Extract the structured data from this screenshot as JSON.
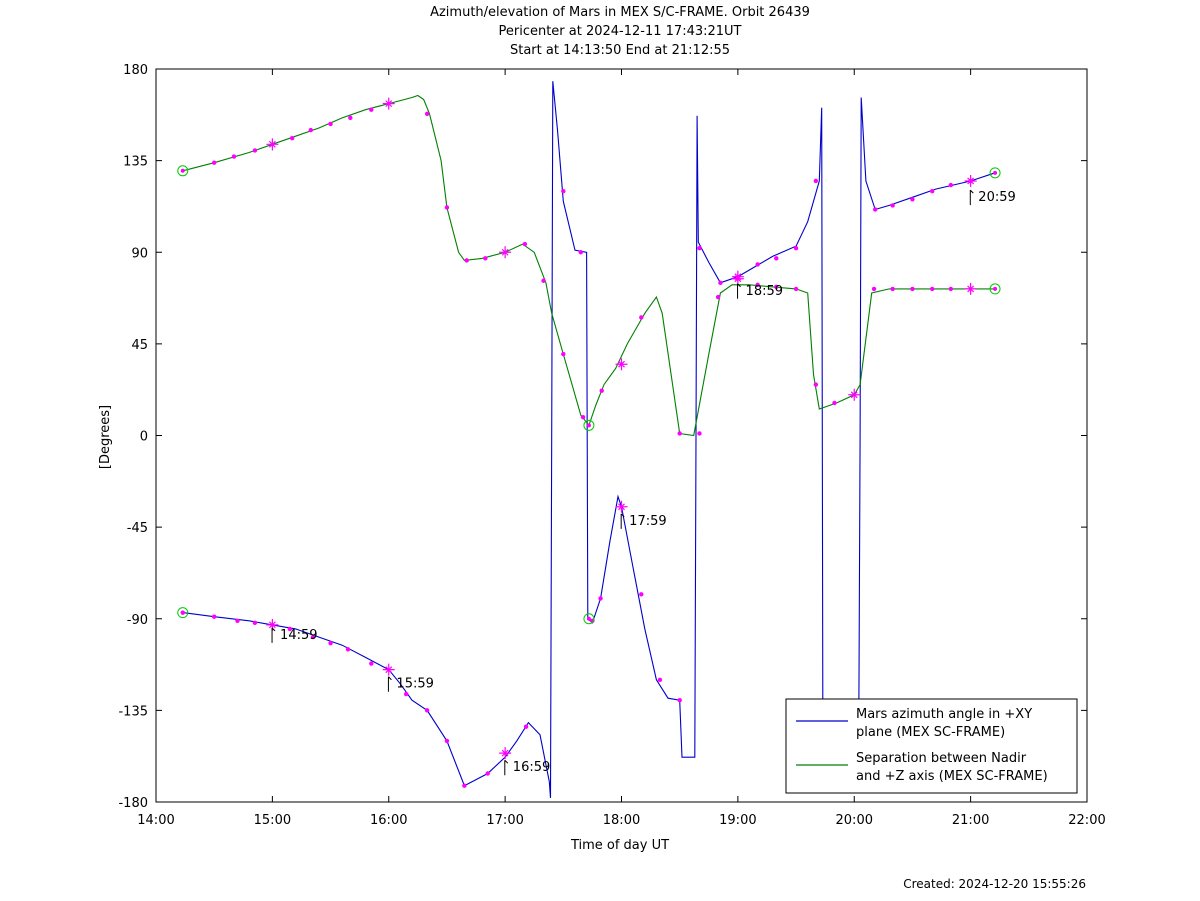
{
  "chart_data": {
    "type": "line",
    "title": "Azimuth/elevation of Mars in MEX S/C-FRAME.  Orbit 26439",
    "subtitle_1": "Pericenter at 2024-12-11 17:43:21UT",
    "subtitle_2": "Start at 14:13:50 End at 21:12:55",
    "xlabel": "Time of day UT",
    "ylabel": "[Degrees]",
    "xlim_hours": [
      14,
      22
    ],
    "ylim": [
      -180,
      180
    ],
    "x_ticks": [
      "14:00",
      "15:00",
      "16:00",
      "17:00",
      "18:00",
      "19:00",
      "20:00",
      "21:00",
      "22:00"
    ],
    "y_ticks": [
      "180",
      "135",
      "90",
      "45",
      "0",
      "-45",
      "-90",
      "-135",
      "-180"
    ],
    "y_tick_values": [
      180,
      135,
      90,
      45,
      0,
      -45,
      -90,
      -135,
      -180
    ],
    "legend_position": "bottom-right",
    "series": [
      {
        "name": "Mars azimuth angle in +XY plane (MEX SC-FRAME)",
        "legend_line1": "Mars azimuth angle in +XY",
        "legend_line2": "plane (MEX SC-FRAME)",
        "color": "#0000cc",
        "points": [
          [
            14.23,
            -87
          ],
          [
            14.5,
            -89
          ],
          [
            14.8,
            -91
          ],
          [
            15.0,
            -93
          ],
          [
            15.2,
            -95
          ],
          [
            15.4,
            -99
          ],
          [
            15.6,
            -103
          ],
          [
            15.8,
            -109
          ],
          [
            16.0,
            -115
          ],
          [
            16.1,
            -122
          ],
          [
            16.2,
            -130
          ],
          [
            16.33,
            -135
          ],
          [
            16.5,
            -150
          ],
          [
            16.65,
            -172
          ],
          [
            16.85,
            -166
          ],
          [
            17.0,
            -158
          ],
          [
            17.1,
            -150
          ],
          [
            17.2,
            -141
          ],
          [
            17.3,
            -147
          ],
          [
            17.38,
            -170
          ],
          [
            17.39,
            -178
          ],
          [
            17.4,
            0
          ],
          [
            17.41,
            174
          ],
          [
            17.45,
            150
          ],
          [
            17.5,
            115
          ],
          [
            17.6,
            91
          ],
          [
            17.7,
            90
          ],
          [
            17.71,
            -90
          ],
          [
            17.75,
            -92
          ],
          [
            17.82,
            -80
          ],
          [
            17.9,
            -52
          ],
          [
            17.97,
            -30
          ],
          [
            18.0,
            -35
          ],
          [
            18.1,
            -65
          ],
          [
            18.2,
            -95
          ],
          [
            18.3,
            -120
          ],
          [
            18.4,
            -129
          ],
          [
            18.5,
            -130
          ],
          [
            18.52,
            -158
          ],
          [
            18.63,
            -158
          ],
          [
            18.64,
            0
          ],
          [
            18.65,
            157
          ],
          [
            18.66,
            95
          ],
          [
            18.75,
            85
          ],
          [
            18.85,
            75
          ],
          [
            19.0,
            78
          ],
          [
            19.15,
            83
          ],
          [
            19.3,
            88
          ],
          [
            19.5,
            93
          ],
          [
            19.6,
            105
          ],
          [
            19.7,
            125
          ],
          [
            19.72,
            161
          ],
          [
            19.73,
            -130
          ],
          [
            20.04,
            -130
          ],
          [
            20.05,
            0
          ],
          [
            20.06,
            166
          ],
          [
            20.1,
            125
          ],
          [
            20.18,
            111
          ],
          [
            20.3,
            113
          ],
          [
            20.5,
            117
          ],
          [
            20.7,
            121
          ],
          [
            21.0,
            125
          ],
          [
            21.21,
            129
          ]
        ]
      },
      {
        "name": "Separation between Nadir and +Z axis (MEX SC-FRAME)",
        "legend_line1": "Separation between Nadir",
        "legend_line2": "and +Z axis (MEX SC-FRAME)",
        "color": "#008000",
        "points": [
          [
            14.23,
            130
          ],
          [
            14.5,
            134
          ],
          [
            14.8,
            139
          ],
          [
            15.0,
            143
          ],
          [
            15.2,
            147
          ],
          [
            15.4,
            151
          ],
          [
            15.6,
            156
          ],
          [
            15.8,
            160
          ],
          [
            16.0,
            163
          ],
          [
            16.2,
            166
          ],
          [
            16.25,
            167
          ],
          [
            16.3,
            165
          ],
          [
            16.35,
            158
          ],
          [
            16.45,
            135
          ],
          [
            16.5,
            112
          ],
          [
            16.6,
            90
          ],
          [
            16.65,
            86
          ],
          [
            16.8,
            87
          ],
          [
            17.0,
            90
          ],
          [
            17.15,
            94
          ],
          [
            17.25,
            90
          ],
          [
            17.35,
            75
          ],
          [
            17.4,
            60
          ],
          [
            17.5,
            40
          ],
          [
            17.65,
            10
          ],
          [
            17.72,
            5
          ],
          [
            17.78,
            15
          ],
          [
            17.85,
            25
          ],
          [
            17.95,
            33
          ],
          [
            18.05,
            45
          ],
          [
            18.2,
            60
          ],
          [
            18.3,
            68
          ],
          [
            18.35,
            60
          ],
          [
            18.5,
            1
          ],
          [
            18.62,
            0
          ],
          [
            18.75,
            40
          ],
          [
            18.85,
            70
          ],
          [
            18.95,
            74
          ],
          [
            19.1,
            74
          ],
          [
            19.3,
            73
          ],
          [
            19.5,
            72
          ],
          [
            19.6,
            70
          ],
          [
            19.65,
            30
          ],
          [
            19.7,
            13
          ],
          [
            19.85,
            16
          ],
          [
            20.0,
            20
          ],
          [
            20.05,
            25
          ],
          [
            20.15,
            70
          ],
          [
            20.3,
            72
          ],
          [
            20.6,
            72
          ],
          [
            21.0,
            72
          ],
          [
            21.21,
            72
          ]
        ]
      }
    ],
    "marker_color": "#ff00ff",
    "circle_color": "#00cc00",
    "dot_markers": [
      [
        14.23,
        -87
      ],
      [
        14.5,
        -89
      ],
      [
        14.7,
        -91
      ],
      [
        14.85,
        -92
      ],
      [
        15.15,
        -95
      ],
      [
        15.35,
        -99
      ],
      [
        15.5,
        -102
      ],
      [
        15.65,
        -105
      ],
      [
        15.85,
        -112
      ],
      [
        16.15,
        -127
      ],
      [
        16.33,
        -135
      ],
      [
        16.5,
        -150
      ],
      [
        16.65,
        -172
      ],
      [
        16.85,
        -166
      ],
      [
        17.18,
        -143
      ],
      [
        17.5,
        120
      ],
      [
        17.65,
        90
      ],
      [
        17.75,
        -91
      ],
      [
        17.82,
        -80
      ],
      [
        18.17,
        -78
      ],
      [
        18.33,
        -120
      ],
      [
        18.5,
        -130
      ],
      [
        18.67,
        92
      ],
      [
        18.85,
        75
      ],
      [
        19.17,
        84
      ],
      [
        19.33,
        87
      ],
      [
        19.5,
        92
      ],
      [
        19.67,
        125
      ],
      [
        20.18,
        111
      ],
      [
        20.33,
        113
      ],
      [
        20.5,
        116
      ],
      [
        20.67,
        120
      ],
      [
        20.83,
        123
      ],
      [
        21.0,
        125
      ],
      [
        14.5,
        134
      ],
      [
        14.67,
        137
      ],
      [
        14.85,
        140
      ],
      [
        15.17,
        146
      ],
      [
        15.33,
        150
      ],
      [
        15.5,
        153
      ],
      [
        15.67,
        156
      ],
      [
        15.85,
        160
      ],
      [
        16.33,
        158
      ],
      [
        16.5,
        112
      ],
      [
        16.67,
        86
      ],
      [
        16.83,
        87
      ],
      [
        17.17,
        94
      ],
      [
        17.33,
        76
      ],
      [
        17.5,
        40
      ],
      [
        17.67,
        9
      ],
      [
        17.83,
        22
      ],
      [
        18.17,
        58
      ],
      [
        18.5,
        1
      ],
      [
        18.67,
        1
      ],
      [
        18.83,
        68
      ],
      [
        19.17,
        74
      ],
      [
        19.33,
        73
      ],
      [
        19.5,
        72
      ],
      [
        19.67,
        25
      ],
      [
        19.83,
        16
      ],
      [
        20.17,
        72
      ],
      [
        20.33,
        72
      ],
      [
        20.5,
        72
      ],
      [
        20.67,
        72
      ],
      [
        20.83,
        72
      ]
    ],
    "cross_markers": [
      [
        15.0,
        143
      ],
      [
        16.0,
        163
      ],
      [
        17.0,
        90
      ],
      [
        18.0,
        35
      ],
      [
        19.0,
        77
      ],
      [
        20.0,
        20
      ],
      [
        21.0,
        72
      ],
      [
        15.0,
        -93
      ],
      [
        16.0,
        -115
      ],
      [
        17.0,
        -156
      ],
      [
        18.0,
        -35
      ],
      [
        19.0,
        78
      ],
      [
        21.0,
        125
      ]
    ],
    "circle_markers": [
      [
        14.23,
        130
      ],
      [
        14.23,
        -87
      ],
      [
        17.72,
        5
      ],
      [
        17.72,
        -90
      ],
      [
        21.21,
        129
      ],
      [
        21.21,
        72
      ]
    ],
    "annotations": [
      {
        "label": "14:59",
        "x": 14.98,
        "y": -93
      },
      {
        "label": "15:59",
        "x": 15.98,
        "y": -117
      },
      {
        "label": "16:59",
        "x": 16.98,
        "y": -158
      },
      {
        "label": "17:59",
        "x": 17.98,
        "y": -37
      },
      {
        "label": "18:59",
        "x": 18.98,
        "y": 76
      },
      {
        "label": "20:59",
        "x": 20.98,
        "y": 122
      }
    ]
  },
  "footer": {
    "created": "Created: 2024-12-20 15:55:26"
  }
}
